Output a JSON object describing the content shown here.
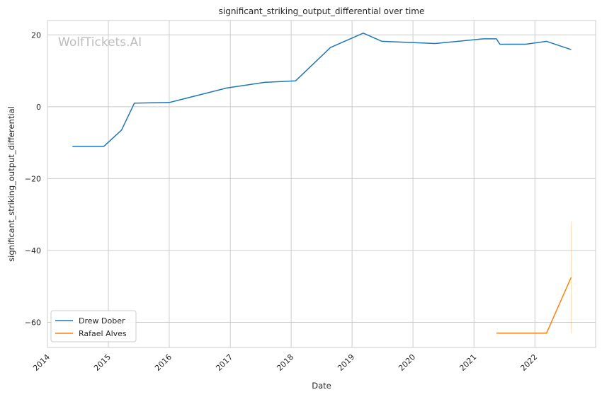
{
  "chart_data": {
    "type": "line",
    "title": "significant_striking_output_differential over time",
    "xlabel": "Date",
    "ylabel": "significant_striking_output_differential",
    "watermark": "WolfTickets.AI",
    "xlim": [
      "2014-01-01",
      "2022-12-31"
    ],
    "ylim": [
      -67,
      24
    ],
    "x_ticks": [
      "2014",
      "2015",
      "2016",
      "2017",
      "2018",
      "2019",
      "2020",
      "2021",
      "2022"
    ],
    "y_ticks": [
      20,
      0,
      -20,
      -40,
      -60
    ],
    "y_tick_labels": [
      "20",
      "0",
      "−20",
      "−40",
      "−60"
    ],
    "grid": true,
    "legend_position": "lower-left",
    "series": [
      {
        "name": "Drew Dober",
        "color": "#1f77b4",
        "points": [
          {
            "x": "2014-05-31",
            "y": -11
          },
          {
            "x": "2014-12-06",
            "y": -11
          },
          {
            "x": "2015-03-21",
            "y": -6.5
          },
          {
            "x": "2015-06-06",
            "y": 1
          },
          {
            "x": "2016-01-02",
            "y": 1.2
          },
          {
            "x": "2016-12-10",
            "y": 5.2
          },
          {
            "x": "2017-07-29",
            "y": 6.8
          },
          {
            "x": "2018-01-27",
            "y": 7.2
          },
          {
            "x": "2018-08-25",
            "y": 16.5
          },
          {
            "x": "2019-03-09",
            "y": 20.5
          },
          {
            "x": "2019-06-29",
            "y": 18.2
          },
          {
            "x": "2020-05-13",
            "y": 17.6
          },
          {
            "x": "2021-02-27",
            "y": 18.9
          },
          {
            "x": "2021-05-15",
            "y": 18.9
          },
          {
            "x": "2021-06-05",
            "y": 17.4
          },
          {
            "x": "2021-11-06",
            "y": 17.4
          },
          {
            "x": "2022-03-12",
            "y": 18.2
          },
          {
            "x": "2022-08-06",
            "y": 15.9
          }
        ]
      },
      {
        "name": "Rafael Alves",
        "color": "#ff7f0e",
        "points": [
          {
            "x": "2021-05-15",
            "y": -63
          },
          {
            "x": "2022-03-12",
            "y": -63
          },
          {
            "x": "2022-08-06",
            "y": -47.5
          }
        ],
        "error_band": {
          "x": "2022-08-06",
          "y_low": -63,
          "y_high": -32
        }
      }
    ]
  }
}
